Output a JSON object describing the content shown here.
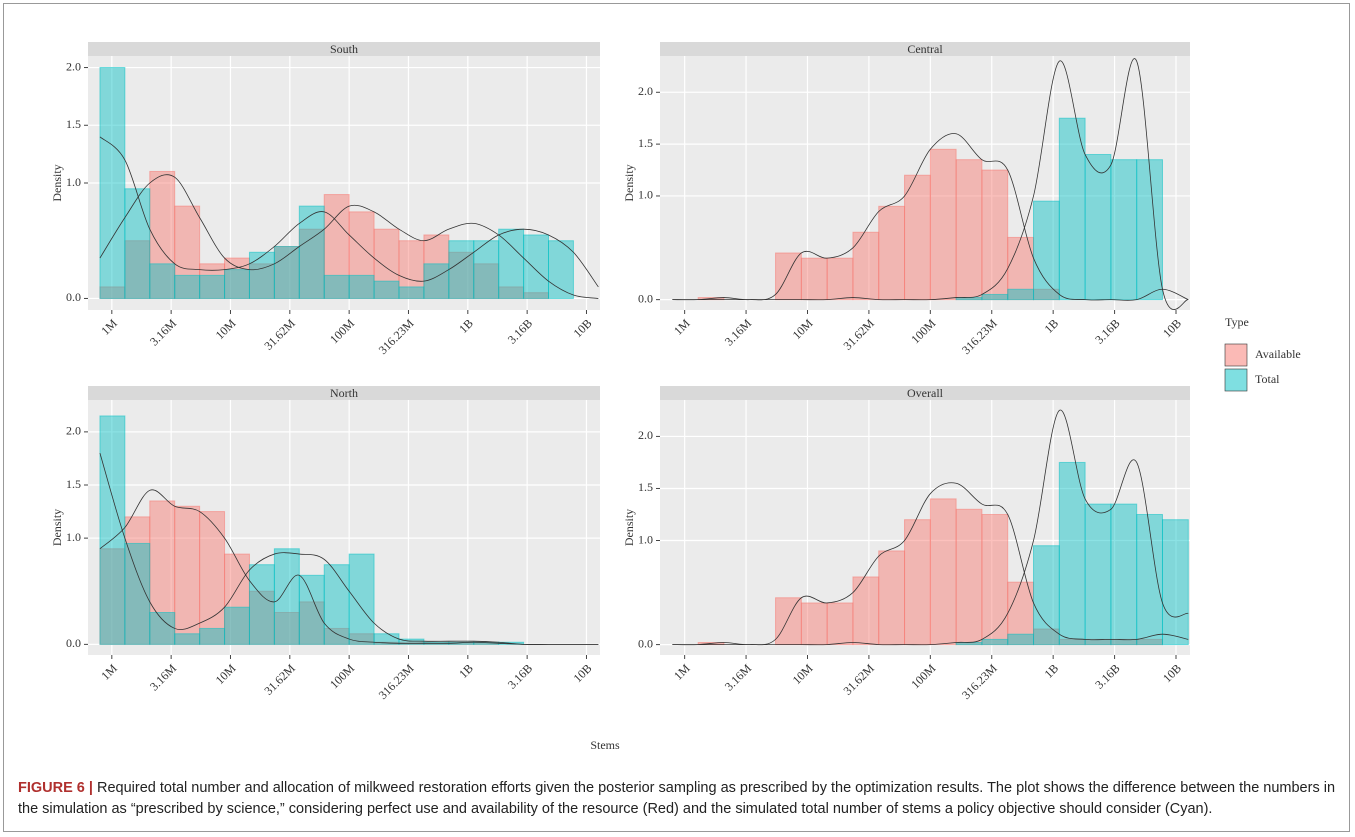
{
  "x_label": "Stems",
  "legend_title": "Type",
  "caption": {
    "label": "FIGURE 6 |",
    "text": "Required total number and allocation of milkweed restoration efforts given the posterior sampling as prescribed by the optimization results. The plot shows the difference between the numbers in the simulation as “prescribed by science,” considering perfect use and availability of the resource (Red) and the simulated total number of stems a policy objective should consider (Cyan)."
  },
  "chart_data": [
    {
      "type": "histogram",
      "title": "South",
      "y_label": "Density",
      "log_x": true,
      "grid": true,
      "bins": [
        794328,
        1288250,
        2089296,
        3388442,
        5495409,
        8912509,
        14454398,
        23442288,
        38018940,
        61659500,
        100000000,
        162181010,
        263026799,
        426579519,
        691830971,
        1122018454,
        1819700859,
        2951209227,
        4786300923,
        7762471166,
        12589254118
      ],
      "xlim": [
        630000,
        13000000000
      ],
      "ylim": [
        -0.1,
        2.1
      ],
      "xticks": [
        {
          "value": 1000000,
          "label": "1M"
        },
        {
          "value": 3162278,
          "label": "3.16M"
        },
        {
          "value": 10000000,
          "label": "10M"
        },
        {
          "value": 31622777,
          "label": "31.62M"
        },
        {
          "value": 100000000,
          "label": "100M"
        },
        {
          "value": 316227766,
          "label": "316.23M"
        },
        {
          "value": 1000000000,
          "label": "1B"
        },
        {
          "value": 3162277660,
          "label": "3.16B"
        },
        {
          "value": 10000000000,
          "label": "10B"
        }
      ],
      "yticks": [
        {
          "value": 0,
          "label": "0.0"
        },
        {
          "value": 1,
          "label": "1.0"
        },
        {
          "value": 1.5,
          "label": "1.5"
        },
        {
          "value": 2,
          "label": "2.0"
        }
      ],
      "series": [
        {
          "name": "Available",
          "color": "#f8766d",
          "values": [
            0.1,
            0.5,
            1.1,
            0.8,
            0.3,
            0.35,
            0.3,
            0.45,
            0.6,
            0.9,
            0.75,
            0.6,
            0.5,
            0.55,
            0.4,
            0.3,
            0.1,
            0.05,
            0,
            0
          ],
          "density": [
            0.35,
            0.7,
            1.0,
            1.05,
            0.7,
            0.35,
            0.25,
            0.3,
            0.45,
            0.6,
            0.8,
            0.75,
            0.6,
            0.5,
            0.6,
            0.65,
            0.55,
            0.35,
            0.15,
            0.03,
            0
          ]
        },
        {
          "name": "Total",
          "color": "#00bfc4",
          "values": [
            2.0,
            0.95,
            0.3,
            0.2,
            0.2,
            0.25,
            0.4,
            0.45,
            0.8,
            0.2,
            0.2,
            0.15,
            0.1,
            0.3,
            0.5,
            0.5,
            0.6,
            0.55,
            0.5,
            0
          ],
          "density": [
            1.4,
            1.2,
            0.6,
            0.3,
            0.25,
            0.25,
            0.3,
            0.45,
            0.65,
            0.75,
            0.55,
            0.35,
            0.2,
            0.15,
            0.25,
            0.4,
            0.55,
            0.6,
            0.55,
            0.4,
            0.1
          ]
        }
      ]
    },
    {
      "type": "histogram",
      "title": "Central",
      "y_label": "Density",
      "log_x": true,
      "grid": true,
      "bins": [
        794328,
        1288250,
        2089296,
        3388442,
        5495409,
        8912509,
        14454398,
        23442288,
        38018940,
        61659500,
        100000000,
        162181010,
        263026799,
        426579519,
        691830971,
        1122018454,
        1819700859,
        2951209227,
        4786300923,
        7762471166,
        12589254118
      ],
      "xlim": [
        630000,
        13000000000
      ],
      "ylim": [
        -0.1,
        2.35
      ],
      "xticks": [
        {
          "value": 1000000,
          "label": "1M"
        },
        {
          "value": 3162278,
          "label": "3.16M"
        },
        {
          "value": 10000000,
          "label": "10M"
        },
        {
          "value": 31622777,
          "label": "31.62M"
        },
        {
          "value": 100000000,
          "label": "100M"
        },
        {
          "value": 316227766,
          "label": "316.23M"
        },
        {
          "value": 1000000000,
          "label": "1B"
        },
        {
          "value": 3162277660,
          "label": "3.16B"
        },
        {
          "value": 10000000000,
          "label": "10B"
        }
      ],
      "yticks": [
        {
          "value": 0,
          "label": "0.0"
        },
        {
          "value": 1,
          "label": "1.0"
        },
        {
          "value": 1.5,
          "label": "1.5"
        },
        {
          "value": 2,
          "label": "2.0"
        }
      ],
      "series": [
        {
          "name": "Available",
          "color": "#f8766d",
          "values": [
            0,
            0.02,
            0,
            0,
            0.45,
            0.4,
            0.4,
            0.65,
            0.9,
            1.2,
            1.45,
            1.35,
            1.25,
            0.6,
            0.1,
            0,
            0,
            0,
            0,
            0
          ],
          "density": [
            0,
            0,
            0.02,
            0,
            0.05,
            0.45,
            0.4,
            0.5,
            0.85,
            1.0,
            1.45,
            1.6,
            1.35,
            1.25,
            0.4,
            0.05,
            0,
            0,
            0,
            0.1,
            0
          ]
        },
        {
          "name": "Total",
          "color": "#00bfc4",
          "values": [
            0,
            0,
            0,
            0,
            0,
            0,
            0,
            0,
            0,
            0,
            0,
            0.02,
            0.05,
            0.1,
            0.95,
            1.75,
            1.4,
            1.35,
            1.35,
            0
          ],
          "density": [
            0,
            0,
            0,
            0,
            0,
            0,
            0,
            0.02,
            0,
            0,
            0,
            0.02,
            0.05,
            0.3,
            1.0,
            2.3,
            1.4,
            1.3,
            2.3,
            0.1,
            0
          ]
        }
      ]
    },
    {
      "type": "histogram",
      "title": "North",
      "y_label": "Density",
      "log_x": true,
      "grid": true,
      "bins": [
        794328,
        1288250,
        2089296,
        3388442,
        5495409,
        8912509,
        14454398,
        23442288,
        38018940,
        61659500,
        100000000,
        162181010,
        263026799,
        426579519,
        691830971,
        1122018454,
        1819700859,
        2951209227,
        4786300923,
        7762471166,
        12589254118
      ],
      "xlim": [
        630000,
        13000000000
      ],
      "ylim": [
        -0.1,
        2.3
      ],
      "xticks": [
        {
          "value": 1000000,
          "label": "1M"
        },
        {
          "value": 3162278,
          "label": "3.16M"
        },
        {
          "value": 10000000,
          "label": "10M"
        },
        {
          "value": 31622777,
          "label": "31.62M"
        },
        {
          "value": 100000000,
          "label": "100M"
        },
        {
          "value": 316227766,
          "label": "316.23M"
        },
        {
          "value": 1000000000,
          "label": "1B"
        },
        {
          "value": 3162277660,
          "label": "3.16B"
        },
        {
          "value": 10000000000,
          "label": "10B"
        }
      ],
      "yticks": [
        {
          "value": 0,
          "label": "0.0"
        },
        {
          "value": 1,
          "label": "1.0"
        },
        {
          "value": 1.5,
          "label": "1.5"
        },
        {
          "value": 2,
          "label": "2.0"
        }
      ],
      "series": [
        {
          "name": "Available",
          "color": "#f8766d",
          "values": [
            0.9,
            1.2,
            1.35,
            1.3,
            1.25,
            0.85,
            0.5,
            0.3,
            0.4,
            0.15,
            0.1,
            0.02,
            0.02,
            0.02,
            0.02,
            0.02,
            0,
            0,
            0,
            0
          ],
          "density": [
            0.9,
            1.1,
            1.45,
            1.3,
            1.25,
            1.0,
            0.6,
            0.4,
            0.65,
            0.2,
            0.05,
            0.02,
            0.01,
            0.01,
            0.01,
            0.02,
            0.01,
            0,
            0,
            0,
            0
          ]
        },
        {
          "name": "Total",
          "color": "#00bfc4",
          "values": [
            2.15,
            0.95,
            0.3,
            0.1,
            0.15,
            0.35,
            0.75,
            0.9,
            0.65,
            0.75,
            0.85,
            0.1,
            0.05,
            0.02,
            0.02,
            0.02,
            0.02,
            0,
            0,
            0
          ],
          "density": [
            1.8,
            1.0,
            0.4,
            0.15,
            0.2,
            0.35,
            0.7,
            0.85,
            0.85,
            0.8,
            0.5,
            0.2,
            0.05,
            0.03,
            0.03,
            0.03,
            0.02,
            0,
            0,
            0,
            0
          ]
        }
      ]
    },
    {
      "type": "histogram",
      "title": "Overall",
      "y_label": "Density",
      "log_x": true,
      "grid": true,
      "bins": [
        794328,
        1288250,
        2089296,
        3388442,
        5495409,
        8912509,
        14454398,
        23442288,
        38018940,
        61659500,
        100000000,
        162181010,
        263026799,
        426579519,
        691830971,
        1122018454,
        1819700859,
        2951209227,
        4786300923,
        7762471166,
        12589254118
      ],
      "xlim": [
        630000,
        13000000000
      ],
      "ylim": [
        -0.1,
        2.35
      ],
      "xticks": [
        {
          "value": 1000000,
          "label": "1M"
        },
        {
          "value": 3162278,
          "label": "3.16M"
        },
        {
          "value": 10000000,
          "label": "10M"
        },
        {
          "value": 31622777,
          "label": "31.62M"
        },
        {
          "value": 100000000,
          "label": "100M"
        },
        {
          "value": 316227766,
          "label": "316.23M"
        },
        {
          "value": 1000000000,
          "label": "1B"
        },
        {
          "value": 3162277660,
          "label": "3.16B"
        },
        {
          "value": 10000000000,
          "label": "10B"
        }
      ],
      "yticks": [
        {
          "value": 0,
          "label": "0.0"
        },
        {
          "value": 1,
          "label": "1.0"
        },
        {
          "value": 1.5,
          "label": "1.5"
        },
        {
          "value": 2,
          "label": "2.0"
        }
      ],
      "series": [
        {
          "name": "Available",
          "color": "#f8766d",
          "values": [
            0,
            0.02,
            0,
            0,
            0.45,
            0.4,
            0.4,
            0.65,
            0.9,
            1.2,
            1.4,
            1.3,
            1.25,
            0.6,
            0.15,
            0.05,
            0.05,
            0.05,
            0.05,
            0
          ],
          "density": [
            0,
            0,
            0.02,
            0,
            0.05,
            0.45,
            0.4,
            0.5,
            0.85,
            1.0,
            1.45,
            1.55,
            1.35,
            1.25,
            0.4,
            0.1,
            0.05,
            0.05,
            0.05,
            0.1,
            0.05
          ]
        },
        {
          "name": "Total",
          "color": "#00bfc4",
          "values": [
            0,
            0,
            0,
            0,
            0,
            0,
            0,
            0,
            0,
            0,
            0,
            0.02,
            0.05,
            0.1,
            0.95,
            1.75,
            1.35,
            1.35,
            1.25,
            1.2
          ],
          "density": [
            0,
            0,
            0,
            0,
            0,
            0,
            0,
            0.02,
            0,
            0,
            0,
            0.02,
            0.05,
            0.3,
            1.0,
            2.25,
            1.4,
            1.3,
            1.75,
            0.4,
            0.3
          ]
        }
      ]
    }
  ]
}
